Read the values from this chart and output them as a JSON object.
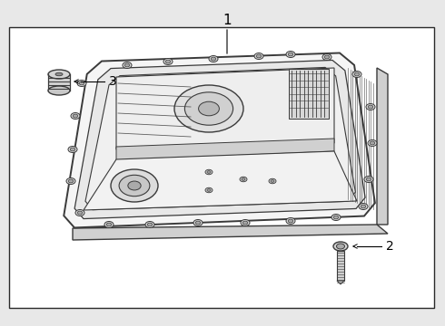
{
  "bg_color": "#e8e8e8",
  "white": "#ffffff",
  "border_color": "#2a2a2a",
  "line_color": "#3a3a3a",
  "fill_light": "#f5f5f5",
  "fill_mid": "#e8e8e8",
  "fill_dark": "#d0d0d0",
  "fill_darker": "#b8b8b8",
  "title": "1",
  "label_2": "2",
  "label_3": "3",
  "fig_width": 4.9,
  "fig_height": 3.6,
  "dpi": 100
}
